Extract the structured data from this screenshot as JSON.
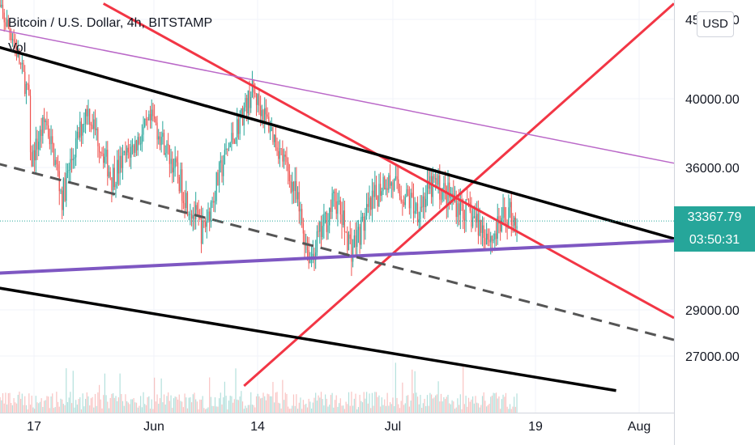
{
  "header": {
    "title": "Bitcoin / U.S. Dollar, 4h, BITSTAMP",
    "volume_label": "Vol",
    "currency_button": "USD"
  },
  "last_price": {
    "value": "33367.79",
    "countdown": "03:50:31",
    "color": "#26a69a"
  },
  "colors": {
    "up": "#26a69a",
    "down": "#ef5350",
    "red_line": "#f23645",
    "black_line": "#000000",
    "purple_line": "#7e57c2",
    "light_purple_line": "#ba68c8",
    "dashed_line": "#555555"
  },
  "chart_data": {
    "type": "candlestick",
    "title": "Bitcoin / U.S. Dollar, 4h, BITSTAMP",
    "x_tick_labels": [
      "17",
      "Jun",
      "14",
      "Jul",
      "19",
      "Aug"
    ],
    "y_tick_labels": [
      "45000.00",
      "40000.00",
      "36000.00",
      "29000.00",
      "27000.00"
    ],
    "y_ticks": [
      45000,
      40000,
      36000,
      29000,
      27000
    ],
    "ylim": [
      25500,
      46000
    ],
    "x_domain_days": [
      "2021-05-15",
      "2021-08-05"
    ],
    "grid": true,
    "candle_path": [
      {
        "date": "2021-05-15",
        "price": 46000
      },
      {
        "date": "2021-05-17",
        "price": 44000
      },
      {
        "date": "2021-05-19",
        "price": 40000
      },
      {
        "date": "2021-05-19",
        "price": 36000
      },
      {
        "date": "2021-05-21",
        "price": 38800
      },
      {
        "date": "2021-05-23",
        "price": 34500
      },
      {
        "date": "2021-05-26",
        "price": 39500
      },
      {
        "date": "2021-05-29",
        "price": 35500
      },
      {
        "date": "2021-06-03",
        "price": 38800
      },
      {
        "date": "2021-06-07",
        "price": 34500
      },
      {
        "date": "2021-06-09",
        "price": 32800
      },
      {
        "date": "2021-06-12",
        "price": 37000
      },
      {
        "date": "2021-06-15",
        "price": 40500
      },
      {
        "date": "2021-06-17",
        "price": 38500
      },
      {
        "date": "2021-06-20",
        "price": 35000
      },
      {
        "date": "2021-06-22",
        "price": 31500
      },
      {
        "date": "2021-06-25",
        "price": 34500
      },
      {
        "date": "2021-06-27",
        "price": 32000
      },
      {
        "date": "2021-07-01",
        "price": 35500
      },
      {
        "date": "2021-07-05",
        "price": 34000
      },
      {
        "date": "2021-07-07",
        "price": 35200
      },
      {
        "date": "2021-07-11",
        "price": 33800
      },
      {
        "date": "2021-07-14",
        "price": 32500
      },
      {
        "date": "2021-07-16",
        "price": 33800
      },
      {
        "date": "2021-07-17",
        "price": 33368
      }
    ],
    "trend_lines": [
      {
        "style": "red",
        "from": {
          "date": "2021-05-28",
          "price": 46000
        },
        "to": {
          "date": "2021-08-05",
          "price": 28650
        }
      },
      {
        "style": "red",
        "from": {
          "date": "2021-06-14",
          "price": 25700
        },
        "to": {
          "date": "2021-08-05",
          "price": 46000
        }
      },
      {
        "style": "black",
        "from": {
          "date": "2021-05-15",
          "price": 43300
        },
        "to": {
          "date": "2021-08-05",
          "price": 32500
        }
      },
      {
        "style": "black",
        "from": {
          "date": "2021-05-15",
          "price": 30100
        },
        "to": {
          "date": "2021-07-29",
          "price": 25500
        }
      },
      {
        "style": "purple",
        "from": {
          "date": "2021-05-15",
          "price": 30800
        },
        "to": {
          "date": "2021-08-05",
          "price": 32400
        }
      },
      {
        "style": "light_purple",
        "from": {
          "date": "2021-05-15",
          "price": 44400
        },
        "to": {
          "date": "2021-08-05",
          "price": 36250
        }
      },
      {
        "style": "dashed",
        "from": {
          "date": "2021-05-15",
          "price": 36250
        },
        "to": {
          "date": "2021-08-05",
          "price": 27700
        }
      }
    ],
    "last_price_line": 33368
  }
}
